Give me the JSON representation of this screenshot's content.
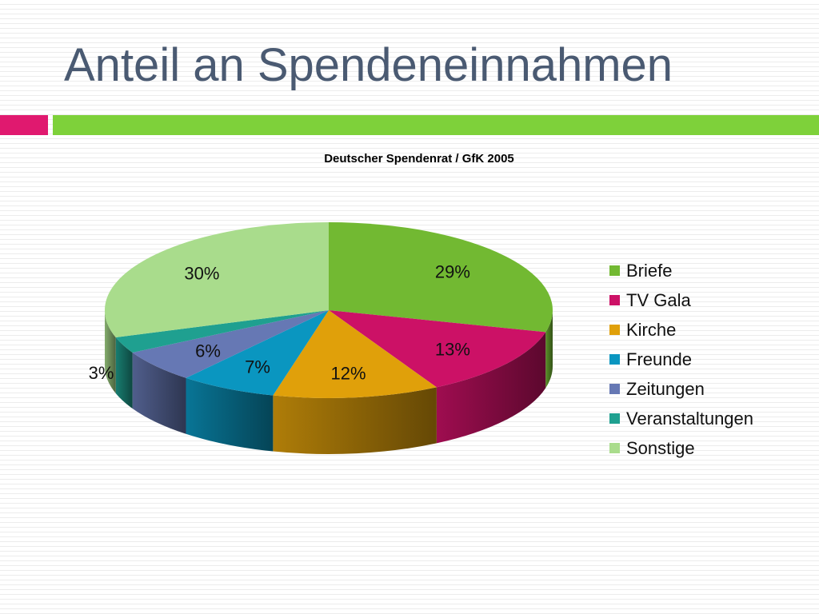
{
  "slide": {
    "title": "Anteil an Spendeneinnahmen",
    "title_color": "#4a5a72",
    "accent_pink": "#e0196f",
    "accent_green": "#7ed13a"
  },
  "chart_data": {
    "type": "pie",
    "title": "Deutscher Spendenrat / GfK 2005",
    "legend_position": "right",
    "style": "3d",
    "slices": [
      {
        "name": "Briefe",
        "value": 29,
        "label": "29%",
        "color": "#72b932"
      },
      {
        "name": "TV Gala",
        "value": 13,
        "label": "13%",
        "color": "#cc1166"
      },
      {
        "name": "Kirche",
        "value": 12,
        "label": "12%",
        "color": "#e0a00a"
      },
      {
        "name": "Freunde",
        "value": 7,
        "label": "7%",
        "color": "#0a96c0"
      },
      {
        "name": "Zeitungen",
        "value": 6,
        "label": "6%",
        "color": "#6678b4"
      },
      {
        "name": "Veranstaltungen",
        "value": 3,
        "label": "3%",
        "color": "#1fa090"
      },
      {
        "name": "Sonstige",
        "value": 30,
        "label": "30%",
        "color": "#a9dc8c"
      }
    ]
  }
}
